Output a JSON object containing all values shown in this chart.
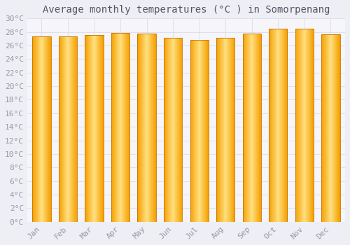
{
  "title": "Average monthly temperatures (°C ) in Somorpenang",
  "months": [
    "Jan",
    "Feb",
    "Mar",
    "Apr",
    "May",
    "Jun",
    "Jul",
    "Aug",
    "Sep",
    "Oct",
    "Nov",
    "Dec"
  ],
  "values": [
    27.3,
    27.3,
    27.5,
    27.9,
    27.8,
    27.1,
    26.8,
    27.1,
    27.8,
    28.5,
    28.5,
    27.7
  ],
  "bar_color_center": "#FFE080",
  "bar_color_edge": "#F5A000",
  "bar_outline_color": "#C87000",
  "background_color": "#EEEEF5",
  "plot_bg_color": "#F5F5FA",
  "grid_color": "#DCDCE8",
  "text_color": "#999AAA",
  "title_color": "#555566",
  "ylim": [
    0,
    30
  ],
  "ytick_step": 2,
  "title_fontsize": 10,
  "tick_fontsize": 8,
  "font_family": "monospace",
  "bar_width": 0.7,
  "gradient_steps": 50
}
